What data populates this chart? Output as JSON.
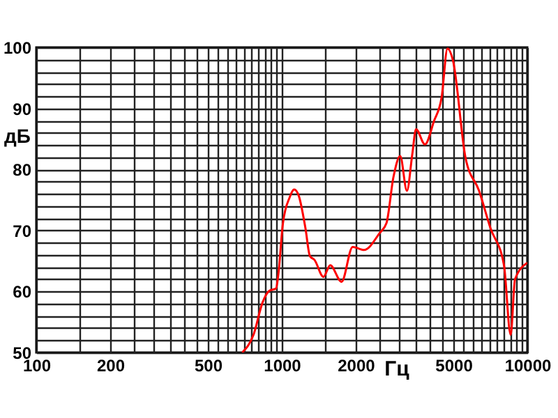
{
  "chart_data": {
    "type": "line",
    "xlabel": "Гц",
    "ylabel": "дБ",
    "log": "x",
    "grid": true,
    "line_style": "solid",
    "marker": "none",
    "xlim": [
      100,
      10000
    ],
    "ylim": [
      50,
      100
    ],
    "xticks": [
      100,
      {
        "value": 150,
        "label": null
      },
      200,
      {
        "value": 250,
        "label": null
      },
      {
        "value": 300,
        "label": null
      },
      {
        "value": 350,
        "label": null
      },
      {
        "value": 400,
        "label": null
      },
      {
        "value": 450,
        "label": null
      },
      500,
      {
        "value": 550,
        "label": null
      },
      {
        "value": 600,
        "label": null
      },
      {
        "value": 650,
        "label": null
      },
      {
        "value": 700,
        "label": null
      },
      {
        "value": 750,
        "label": null
      },
      {
        "value": 800,
        "label": null
      },
      {
        "value": 850,
        "label": null
      },
      {
        "value": 900,
        "label": null
      },
      {
        "value": 950,
        "label": null
      },
      1000,
      {
        "value": 1500,
        "label": null
      },
      2000,
      {
        "value": 2500,
        "label": null
      },
      {
        "value": 3000,
        "label": null
      },
      {
        "value": 3500,
        "label": null
      },
      {
        "value": 4000,
        "label": null
      },
      {
        "value": 4500,
        "label": null
      },
      5000,
      {
        "value": 5500,
        "label": null
      },
      {
        "value": 6000,
        "label": null
      },
      {
        "value": 6500,
        "label": null
      },
      {
        "value": 7000,
        "label": null
      },
      {
        "value": 7500,
        "label": null
      },
      {
        "value": 8000,
        "label": null
      },
      {
        "value": 8500,
        "label": null
      },
      {
        "value": 9000,
        "label": null
      },
      {
        "value": 9500,
        "label": null
      },
      10000
    ],
    "yticks": [
      50,
      {
        "value": 52,
        "label": null
      },
      {
        "value": 54,
        "label": null
      },
      {
        "value": 56,
        "label": null
      },
      {
        "value": 58,
        "label": null
      },
      60,
      {
        "value": 62,
        "label": null
      },
      {
        "value": 64,
        "label": null
      },
      {
        "value": 66,
        "label": null
      },
      {
        "value": 68,
        "label": null
      },
      70,
      {
        "value": 72,
        "label": null
      },
      {
        "value": 74,
        "label": null
      },
      {
        "value": 76,
        "label": null
      },
      {
        "value": 78,
        "label": null
      },
      80,
      {
        "value": 82,
        "label": null
      },
      {
        "value": 84,
        "label": null
      },
      {
        "value": 86,
        "label": null
      },
      {
        "value": 88,
        "label": null
      },
      90,
      {
        "value": 92,
        "label": null
      },
      {
        "value": 94,
        "label": null
      },
      {
        "value": 96,
        "label": null
      },
      {
        "value": 98,
        "label": null
      },
      100
    ],
    "series": [
      {
        "color": "#ff0000",
        "x": [
          690,
          767,
          835,
          889,
          948,
          968,
          1011,
          1076,
          1124,
          1172,
          1248,
          1302,
          1358,
          1478,
          1575,
          1752,
          1944,
          2163,
          2506,
          2669,
          2851,
          3036,
          3233,
          3403,
          3521,
          3829,
          4166,
          4477,
          4731,
          4977,
          5602,
          6359,
          7075,
          8035,
          8554,
          8913,
          10000
        ],
        "values": [
          50,
          52.9,
          58.2,
          60.1,
          60.5,
          62.8,
          71.2,
          75.4,
          76.7,
          75.7,
          70.4,
          65.8,
          65.2,
          62.4,
          64.3,
          61.6,
          67.3,
          66.8,
          69.6,
          71.2,
          78.8,
          82.2,
          76.5,
          82.6,
          86.6,
          84.1,
          87.9,
          91.8,
          99.8,
          97.9,
          81.9,
          76.5,
          70.4,
          64.3,
          52.9,
          62.0,
          64.7
        ]
      }
    ]
  }
}
